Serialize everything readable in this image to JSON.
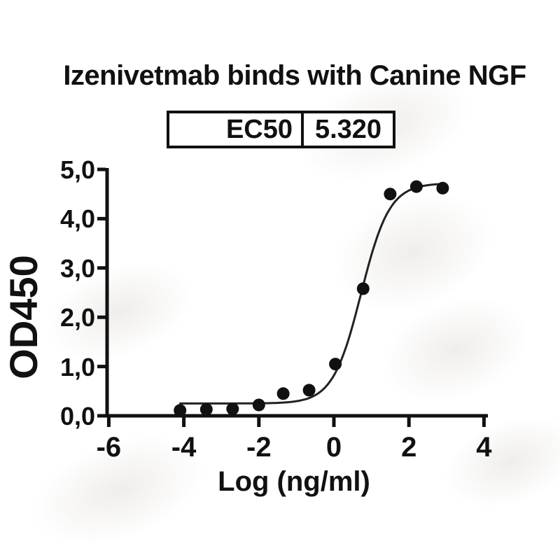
{
  "page": {
    "title": "Izenivetmab binds with Canine NGF"
  },
  "ec50_table": {
    "label": "EC50",
    "value": "5.320"
  },
  "chart_data": {
    "type": "scatter",
    "title": "Izenivetmab binds with Canine NGF",
    "xlabel": "Log (ng/ml)",
    "ylabel": "OD450",
    "xlim": [
      -6,
      4
    ],
    "ylim": [
      0,
      5
    ],
    "x_ticks": [
      -6,
      -4,
      -2,
      0,
      2,
      4
    ],
    "x_tick_labels": [
      "-6",
      "-4",
      "-2",
      "0",
      "2",
      "4"
    ],
    "y_ticks": [
      0,
      1,
      2,
      3,
      4,
      5
    ],
    "y_tick_labels": [
      "0,0",
      "1,0",
      "2,0",
      "3,0",
      "4,0",
      "5,0"
    ],
    "grid": false,
    "legend": false,
    "ec50_value": "5.320",
    "points": [
      [
        -4.1,
        0.11
      ],
      [
        -3.4,
        0.13
      ],
      [
        -2.7,
        0.14
      ],
      [
        -2.0,
        0.22
      ],
      [
        -1.35,
        0.45
      ],
      [
        -0.66,
        0.52
      ],
      [
        0.04,
        1.05
      ],
      [
        0.78,
        2.58
      ],
      [
        1.5,
        4.5
      ],
      [
        2.2,
        4.65
      ],
      [
        2.9,
        4.62
      ]
    ],
    "fit_curve": {
      "model": "4PL logistic",
      "bottom": 0.25,
      "top": 4.72,
      "log_ec50": 0.726,
      "hill_slope": 1.15,
      "x_start": -4.12,
      "x_end": 2.98
    },
    "marker": {
      "shape": "circle",
      "color": "#111111",
      "radius_px": 9
    },
    "curve_color": "#222222",
    "axis_color": "#111111"
  }
}
